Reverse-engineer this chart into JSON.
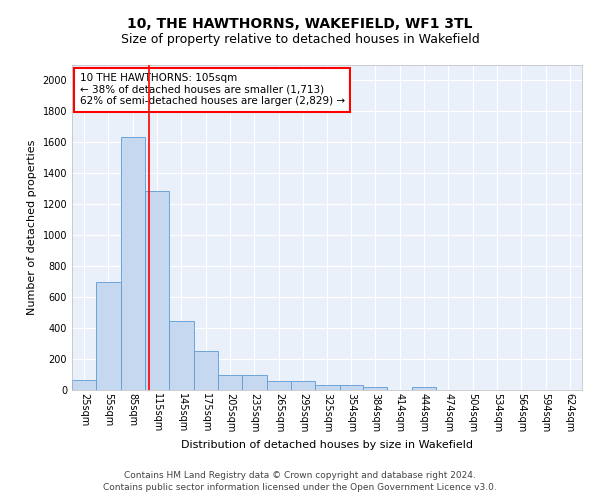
{
  "title": "10, THE HAWTHORNS, WAKEFIELD, WF1 3TL",
  "subtitle": "Size of property relative to detached houses in Wakefield",
  "xlabel": "Distribution of detached houses by size in Wakefield",
  "ylabel": "Number of detached properties",
  "bar_color": "#c5d8f0",
  "bar_edge_color": "#5b9bd5",
  "background_color": "#eaf0fa",
  "grid_color": "#ffffff",
  "annotation_text": "10 THE HAWTHORNS: 105sqm\n← 38% of detached houses are smaller (1,713)\n62% of semi-detached houses are larger (2,829) →",
  "redline_x": 105,
  "categories": [
    "25sqm",
    "55sqm",
    "85sqm",
    "115sqm",
    "145sqm",
    "175sqm",
    "205sqm",
    "235sqm",
    "265sqm",
    "295sqm",
    "325sqm",
    "354sqm",
    "384sqm",
    "414sqm",
    "444sqm",
    "474sqm",
    "504sqm",
    "534sqm",
    "564sqm",
    "594sqm",
    "624sqm"
  ],
  "bin_edges": [
    10,
    40,
    70,
    100,
    130,
    160,
    190,
    220,
    250,
    280,
    310,
    340,
    369,
    399,
    429,
    459,
    489,
    519,
    549,
    579,
    609,
    639
  ],
  "values": [
    65,
    695,
    1635,
    1285,
    445,
    250,
    95,
    95,
    55,
    55,
    30,
    30,
    20,
    0,
    20,
    0,
    0,
    0,
    0,
    0,
    0
  ],
  "ylim": [
    0,
    2100
  ],
  "yticks": [
    0,
    200,
    400,
    600,
    800,
    1000,
    1200,
    1400,
    1600,
    1800,
    2000
  ],
  "footer": "Contains HM Land Registry data © Crown copyright and database right 2024.\nContains public sector information licensed under the Open Government Licence v3.0.",
  "title_fontsize": 10,
  "subtitle_fontsize": 9,
  "axis_label_fontsize": 8,
  "tick_fontsize": 7,
  "annotation_fontsize": 7.5,
  "footer_fontsize": 6.5
}
